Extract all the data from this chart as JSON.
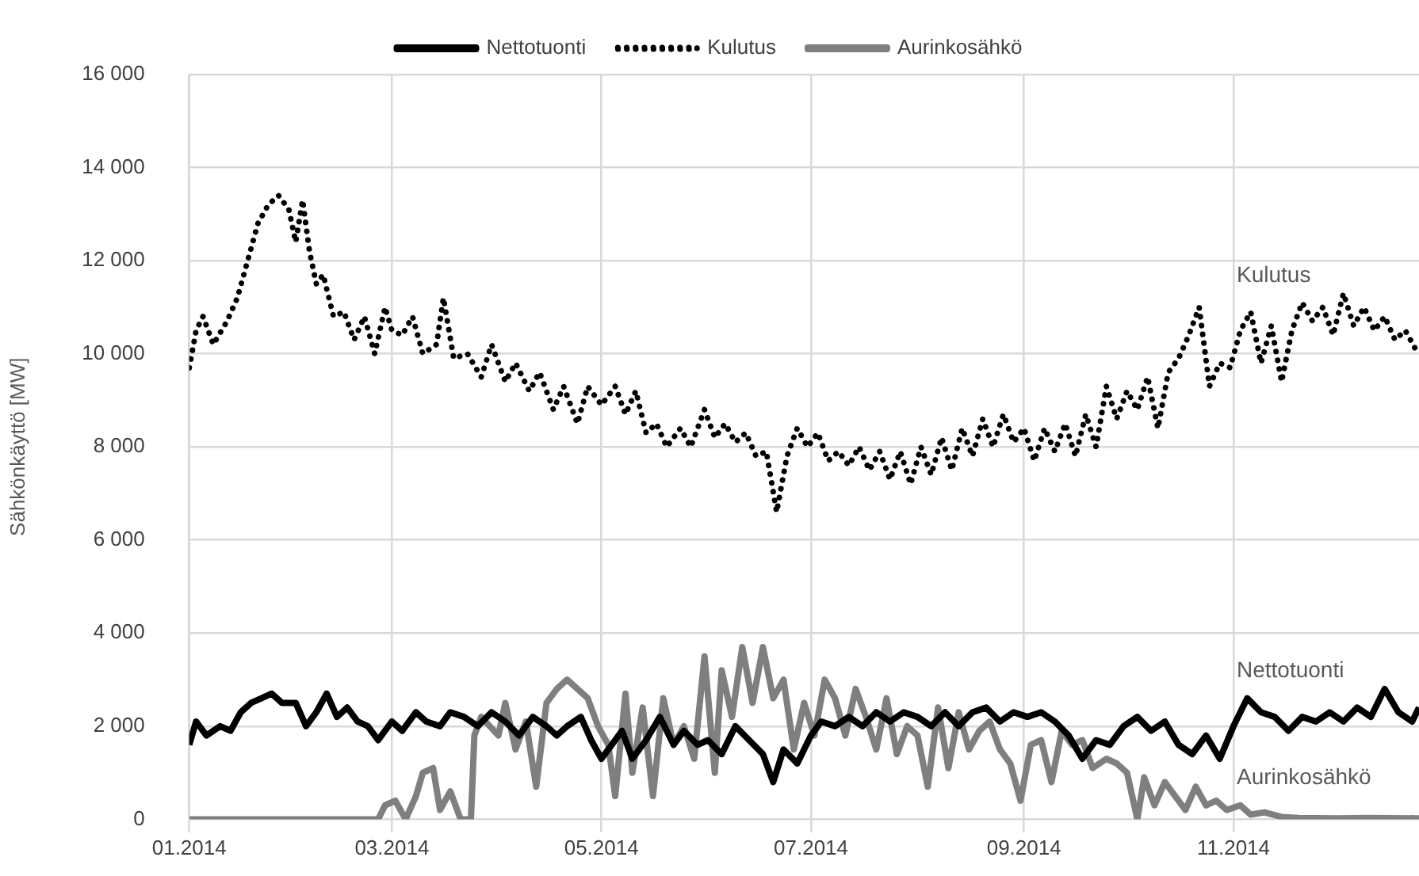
{
  "chart_data": {
    "type": "line",
    "ylabel": "Sähkönkäyttö [MW]",
    "legend": "top",
    "grid": true,
    "marker": "none",
    "xlim": [
      "2014-01-01",
      "2014-12-25"
    ],
    "xticks": [
      {
        "value": "2014-01-01",
        "label": "01.2014"
      },
      {
        "value": "2014-03-01",
        "label": "03.2014"
      },
      {
        "value": "2014-05-01",
        "label": "05.2014"
      },
      {
        "value": "2014-07-01",
        "label": "07.2014"
      },
      {
        "value": "2014-09-01",
        "label": "09.2014"
      },
      {
        "value": "2014-11-01",
        "label": "11.2014"
      }
    ],
    "ylim": [
      0,
      16000
    ],
    "yticks": [
      {
        "value": 0,
        "label": "0"
      },
      {
        "value": 2000,
        "label": "2 000"
      },
      {
        "value": 4000,
        "label": "4 000"
      },
      {
        "value": 6000,
        "label": "6 000"
      },
      {
        "value": 8000,
        "label": "8 000"
      },
      {
        "value": 10000,
        "label": "10 000"
      },
      {
        "value": 12000,
        "label": "12 000"
      },
      {
        "value": 14000,
        "label": "14 000"
      },
      {
        "value": 16000,
        "label": "16 000"
      }
    ],
    "series": [
      {
        "name": "Nettotuonti",
        "color": "#000000",
        "line_style": "solid",
        "x": [
          "2014-01-01",
          "2014-01-03",
          "2014-01-06",
          "2014-01-10",
          "2014-01-13",
          "2014-01-16",
          "2014-01-19",
          "2014-01-22",
          "2014-01-25",
          "2014-01-28",
          "2014-02-01",
          "2014-02-04",
          "2014-02-07",
          "2014-02-10",
          "2014-02-13",
          "2014-02-16",
          "2014-02-19",
          "2014-02-22",
          "2014-02-25",
          "2014-03-01",
          "2014-03-04",
          "2014-03-08",
          "2014-03-11",
          "2014-03-15",
          "2014-03-18",
          "2014-03-22",
          "2014-03-26",
          "2014-03-30",
          "2014-04-03",
          "2014-04-07",
          "2014-04-11",
          "2014-04-15",
          "2014-04-18",
          "2014-04-21",
          "2014-04-25",
          "2014-04-28",
          "2014-05-01",
          "2014-05-04",
          "2014-05-07",
          "2014-05-10",
          "2014-05-14",
          "2014-05-18",
          "2014-05-22",
          "2014-05-25",
          "2014-05-29",
          "2014-06-01",
          "2014-06-05",
          "2014-06-09",
          "2014-06-13",
          "2014-06-17",
          "2014-06-20",
          "2014-06-23",
          "2014-06-27",
          "2014-07-01",
          "2014-07-04",
          "2014-07-08",
          "2014-07-12",
          "2014-07-16",
          "2014-07-20",
          "2014-07-24",
          "2014-07-28",
          "2014-08-01",
          "2014-08-05",
          "2014-08-09",
          "2014-08-13",
          "2014-08-17",
          "2014-08-21",
          "2014-08-25",
          "2014-08-29",
          "2014-09-02",
          "2014-09-06",
          "2014-09-10",
          "2014-09-14",
          "2014-09-18",
          "2014-09-22",
          "2014-09-26",
          "2014-09-30",
          "2014-10-04",
          "2014-10-08",
          "2014-10-12",
          "2014-10-16",
          "2014-10-20",
          "2014-10-24",
          "2014-10-28",
          "2014-11-01",
          "2014-11-05",
          "2014-11-09",
          "2014-11-13",
          "2014-11-17",
          "2014-11-21",
          "2014-11-25",
          "2014-11-29",
          "2014-12-03",
          "2014-12-07",
          "2014-12-11",
          "2014-12-15",
          "2014-12-19",
          "2014-12-23",
          "2014-12-25"
        ],
        "values": [
          1600,
          2100,
          1800,
          2000,
          1900,
          2300,
          2500,
          2600,
          2700,
          2500,
          2500,
          2000,
          2300,
          2700,
          2200,
          2400,
          2100,
          2000,
          1700,
          2100,
          1900,
          2300,
          2100,
          2000,
          2300,
          2200,
          2000,
          2300,
          2100,
          1800,
          2200,
          2000,
          1800,
          2000,
          2200,
          1700,
          1300,
          1600,
          1900,
          1300,
          1700,
          2200,
          1600,
          1900,
          1600,
          1700,
          1400,
          2000,
          1700,
          1400,
          800,
          1500,
          1200,
          1800,
          2100,
          2000,
          2200,
          2000,
          2300,
          2100,
          2300,
          2200,
          2000,
          2300,
          2000,
          2300,
          2400,
          2100,
          2300,
          2200,
          2300,
          2100,
          1800,
          1300,
          1700,
          1600,
          2000,
          2200,
          1900,
          2100,
          1600,
          1400,
          1800,
          1300,
          2000,
          2600,
          2300,
          2200,
          1900,
          2200,
          2100,
          2300,
          2100,
          2400,
          2200,
          2800,
          2300,
          2100,
          2400
        ]
      },
      {
        "name": "Kulutus",
        "color": "#000000",
        "line_style": "dotted",
        "x": [
          "2014-01-01",
          "2014-01-03",
          "2014-01-05",
          "2014-01-08",
          "2014-01-12",
          "2014-01-15",
          "2014-01-18",
          "2014-01-21",
          "2014-01-24",
          "2014-01-27",
          "2014-01-30",
          "2014-02-01",
          "2014-02-03",
          "2014-02-05",
          "2014-02-07",
          "2014-02-09",
          "2014-02-12",
          "2014-02-15",
          "2014-02-18",
          "2014-02-21",
          "2014-02-24",
          "2014-02-27",
          "2014-03-01",
          "2014-03-04",
          "2014-03-07",
          "2014-03-10",
          "2014-03-14",
          "2014-03-16",
          "2014-03-19",
          "2014-03-23",
          "2014-03-27",
          "2014-03-30",
          "2014-04-03",
          "2014-04-06",
          "2014-04-10",
          "2014-04-13",
          "2014-04-17",
          "2014-04-20",
          "2014-04-24",
          "2014-04-27",
          "2014-05-01",
          "2014-05-05",
          "2014-05-08",
          "2014-05-11",
          "2014-05-14",
          "2014-05-17",
          "2014-05-20",
          "2014-05-24",
          "2014-05-27",
          "2014-05-31",
          "2014-06-03",
          "2014-06-06",
          "2014-06-09",
          "2014-06-12",
          "2014-06-15",
          "2014-06-18",
          "2014-06-21",
          "2014-06-24",
          "2014-06-27",
          "2014-06-30",
          "2014-07-03",
          "2014-07-06",
          "2014-07-09",
          "2014-07-12",
          "2014-07-15",
          "2014-07-18",
          "2014-07-21",
          "2014-07-24",
          "2014-07-27",
          "2014-07-30",
          "2014-08-02",
          "2014-08-05",
          "2014-08-08",
          "2014-08-11",
          "2014-08-14",
          "2014-08-17",
          "2014-08-20",
          "2014-08-23",
          "2014-08-26",
          "2014-08-29",
          "2014-09-01",
          "2014-09-04",
          "2014-09-07",
          "2014-09-10",
          "2014-09-13",
          "2014-09-16",
          "2014-09-19",
          "2014-09-22",
          "2014-09-25",
          "2014-09-28",
          "2014-10-01",
          "2014-10-04",
          "2014-10-07",
          "2014-10-10",
          "2014-10-13",
          "2014-10-16",
          "2014-10-19",
          "2014-10-22",
          "2014-10-25",
          "2014-10-28",
          "2014-10-31",
          "2014-11-03",
          "2014-11-06",
          "2014-11-09",
          "2014-11-12",
          "2014-11-15",
          "2014-11-18",
          "2014-11-21",
          "2014-11-24",
          "2014-11-27",
          "2014-11-30",
          "2014-12-03",
          "2014-12-06",
          "2014-12-09",
          "2014-12-12",
          "2014-12-15",
          "2014-12-18",
          "2014-12-21",
          "2014-12-24"
        ],
        "values": [
          9700,
          10500,
          10800,
          10200,
          10700,
          11200,
          12000,
          12800,
          13200,
          13400,
          13100,
          12400,
          13300,
          12200,
          11500,
          11700,
          10800,
          10900,
          10300,
          10800,
          10000,
          11000,
          10500,
          10400,
          10800,
          10000,
          10200,
          11200,
          9900,
          10000,
          9500,
          10200,
          9400,
          9800,
          9200,
          9600,
          8800,
          9300,
          8500,
          9300,
          8900,
          9300,
          8700,
          9200,
          8300,
          8500,
          8000,
          8400,
          8000,
          8800,
          8200,
          8500,
          8100,
          8300,
          7800,
          7900,
          6600,
          7800,
          8400,
          8000,
          8300,
          7700,
          7900,
          7600,
          8000,
          7500,
          7900,
          7300,
          7900,
          7200,
          8000,
          7400,
          8200,
          7500,
          8400,
          7800,
          8600,
          8000,
          8700,
          8100,
          8400,
          7700,
          8400,
          7900,
          8500,
          7800,
          8700,
          8000,
          9300,
          8600,
          9200,
          8800,
          9500,
          8400,
          9600,
          9900,
          10400,
          11000,
          9300,
          9800,
          9700,
          10500,
          10900,
          9800,
          10600,
          9400,
          10500,
          11100,
          10700,
          11000,
          10400,
          11300,
          10600,
          11000,
          10500,
          10800,
          10300,
          10500,
          10100
        ]
      },
      {
        "name": "Aurinkosähkö",
        "color": "#7f7f7f",
        "line_style": "solid",
        "x": [
          "2014-01-01",
          "2014-02-25",
          "2014-02-27",
          "2014-03-02",
          "2014-03-05",
          "2014-03-08",
          "2014-03-10",
          "2014-03-13",
          "2014-03-15",
          "2014-03-18",
          "2014-03-21",
          "2014-03-24",
          "2014-03-25",
          "2014-03-27",
          "2014-04-01",
          "2014-04-03",
          "2014-04-06",
          "2014-04-09",
          "2014-04-12",
          "2014-04-15",
          "2014-04-18",
          "2014-04-21",
          "2014-04-24",
          "2014-04-27",
          "2014-04-30",
          "2014-05-03",
          "2014-05-05",
          "2014-05-08",
          "2014-05-10",
          "2014-05-13",
          "2014-05-16",
          "2014-05-19",
          "2014-05-22",
          "2014-05-25",
          "2014-05-28",
          "2014-05-31",
          "2014-06-03",
          "2014-06-05",
          "2014-06-08",
          "2014-06-11",
          "2014-06-14",
          "2014-06-17",
          "2014-06-20",
          "2014-06-23",
          "2014-06-26",
          "2014-06-29",
          "2014-07-02",
          "2014-07-05",
          "2014-07-08",
          "2014-07-11",
          "2014-07-14",
          "2014-07-17",
          "2014-07-20",
          "2014-07-23",
          "2014-07-26",
          "2014-07-29",
          "2014-08-01",
          "2014-08-04",
          "2014-08-07",
          "2014-08-10",
          "2014-08-13",
          "2014-08-16",
          "2014-08-19",
          "2014-08-22",
          "2014-08-25",
          "2014-08-28",
          "2014-08-31",
          "2014-09-03",
          "2014-09-06",
          "2014-09-09",
          "2014-09-12",
          "2014-09-15",
          "2014-09-18",
          "2014-09-21",
          "2014-09-25",
          "2014-09-28",
          "2014-10-01",
          "2014-10-04",
          "2014-10-06",
          "2014-10-09",
          "2014-10-12",
          "2014-10-15",
          "2014-10-18",
          "2014-10-21",
          "2014-10-24",
          "2014-10-27",
          "2014-10-30",
          "2014-11-03",
          "2014-11-06",
          "2014-11-10",
          "2014-11-15",
          "2014-11-20",
          "2014-12-01",
          "2014-12-10",
          "2014-12-25"
        ],
        "values": [
          0,
          0,
          300,
          400,
          0,
          500,
          1000,
          1100,
          200,
          600,
          0,
          0,
          1800,
          2200,
          1800,
          2500,
          1500,
          2100,
          700,
          2500,
          2800,
          3000,
          2800,
          2600,
          2000,
          1600,
          500,
          2700,
          1000,
          2400,
          500,
          2600,
          1600,
          2000,
          1300,
          3500,
          1000,
          3200,
          2200,
          3700,
          2500,
          3700,
          2600,
          3000,
          1500,
          2500,
          1800,
          3000,
          2600,
          1800,
          2800,
          2200,
          1500,
          2600,
          1400,
          2000,
          1800,
          700,
          2400,
          1100,
          2300,
          1500,
          1900,
          2100,
          1500,
          1200,
          400,
          1600,
          1700,
          800,
          1900,
          1600,
          1700,
          1100,
          1300,
          1200,
          1000,
          0,
          900,
          300,
          800,
          500,
          200,
          700,
          300,
          400,
          200,
          300,
          100,
          150,
          50,
          30,
          20,
          30,
          20
        ]
      }
    ]
  }
}
